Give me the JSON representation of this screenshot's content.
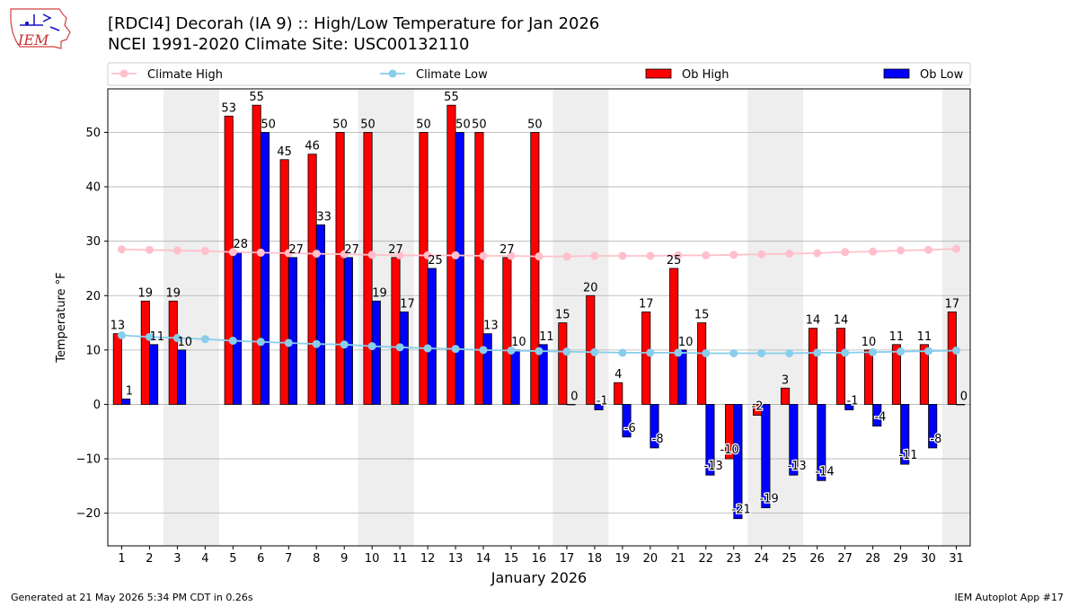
{
  "header": {
    "title_line1": "[RDCI4] Decorah (IA 9) :: High/Low Temperature for Jan 2026",
    "title_line2": "NCEI 1991-2020 Climate Site: USC00132110"
  },
  "logo": {
    "text": "IEM"
  },
  "footer": {
    "generated": "Generated at 21 May 2026 5:34 PM CDT in 0.26s",
    "app": "IEM Autoplot App #17"
  },
  "colors": {
    "ob_high": "#ff0000",
    "ob_low": "#0000ff",
    "climate_high": "#ffc0cb",
    "climate_low": "#87ceeb",
    "weekend_shade": "#eeeeee",
    "grid": "#b0b0b0"
  },
  "chart_data": {
    "type": "bar",
    "xlabel": "January 2026",
    "ylabel": "Temperature °F",
    "ylim": [
      -26,
      58
    ],
    "yticks": [
      -20,
      -10,
      0,
      10,
      20,
      30,
      40,
      50
    ],
    "grid": "horizontal",
    "legend_placement": "top",
    "shaded_days": [
      [
        3,
        4
      ],
      [
        10,
        11
      ],
      [
        17,
        18
      ],
      [
        24,
        25
      ],
      [
        31,
        31
      ]
    ],
    "categories": [
      1,
      2,
      3,
      4,
      5,
      6,
      7,
      8,
      9,
      10,
      11,
      12,
      13,
      14,
      15,
      16,
      17,
      18,
      19,
      20,
      21,
      22,
      23,
      24,
      25,
      26,
      27,
      28,
      29,
      30,
      31
    ],
    "series": [
      {
        "name": "Climate High",
        "kind": "line",
        "values": [
          28.5,
          28.4,
          28.3,
          28.2,
          28.0,
          27.9,
          27.8,
          27.7,
          27.6,
          27.5,
          27.4,
          27.4,
          27.4,
          27.3,
          27.3,
          27.2,
          27.2,
          27.3,
          27.3,
          27.3,
          27.4,
          27.4,
          27.5,
          27.6,
          27.7,
          27.8,
          28.0,
          28.1,
          28.3,
          28.4,
          28.6
        ]
      },
      {
        "name": "Climate Low",
        "kind": "line",
        "values": [
          12.7,
          12.4,
          12.2,
          12.0,
          11.7,
          11.5,
          11.3,
          11.1,
          11.0,
          10.7,
          10.5,
          10.3,
          10.2,
          10.0,
          9.9,
          9.8,
          9.7,
          9.6,
          9.5,
          9.5,
          9.5,
          9.4,
          9.4,
          9.4,
          9.4,
          9.5,
          9.5,
          9.6,
          9.7,
          9.8,
          9.9
        ]
      },
      {
        "name": "Ob High",
        "kind": "bar",
        "values": [
          13,
          19,
          19,
          null,
          53,
          55,
          45,
          46,
          50,
          50,
          27,
          50,
          55,
          50,
          27,
          50,
          15,
          20,
          4,
          17,
          25,
          15,
          -10,
          -2,
          3,
          14,
          14,
          10,
          11,
          11,
          17
        ],
        "labels": [
          "13",
          "19",
          "19",
          "",
          "53",
          "55",
          "45",
          "46",
          "50",
          "50",
          "27",
          "50",
          "55",
          "50",
          "27",
          "50",
          "15",
          "20",
          "4",
          "17",
          "25",
          "15",
          "-10",
          "-2",
          "3",
          "14",
          "14",
          "10",
          "11",
          "11",
          "17"
        ]
      },
      {
        "name": "Ob Low",
        "kind": "bar",
        "values": [
          1,
          11,
          10,
          null,
          28,
          50,
          27,
          33,
          27,
          19,
          17,
          25,
          50,
          13,
          10,
          11,
          0,
          -1,
          -6,
          -8,
          10,
          -13,
          -21,
          -19,
          -13,
          -14,
          -1,
          -4,
          -11,
          -8,
          0
        ],
        "labels": [
          "1",
          "11",
          "10",
          "",
          "28",
          "50",
          "27",
          "33",
          "27",
          "19",
          "17",
          "25",
          "50",
          "13",
          "10",
          "11",
          "0",
          "-1",
          "-6",
          "-8",
          "10",
          "-13",
          "-21",
          "-19",
          "-13",
          "-14",
          "-1",
          "-4",
          "-11",
          "-8",
          "0"
        ]
      }
    ]
  }
}
